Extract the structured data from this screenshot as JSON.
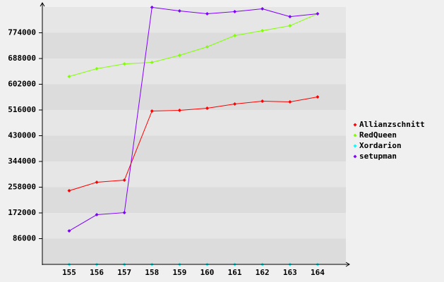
{
  "chart_data": {
    "type": "line",
    "categories": [
      "155",
      "156",
      "157",
      "158",
      "159",
      "160",
      "161",
      "162",
      "163",
      "164"
    ],
    "series": [
      {
        "name": "Allianzschnitt",
        "color": "#ff0000",
        "values": [
          246200,
          274500,
          281600,
          512500,
          514900,
          522000,
          536000,
          545500,
          543000,
          559600
        ]
      },
      {
        "name": "RedQueen",
        "color": "#80ff00",
        "values": [
          628000,
          654000,
          670000,
          675000,
          698600,
          726900,
          764600,
          781000,
          797500,
          837500
        ]
      },
      {
        "name": "Xordarion",
        "color": "#00ffff",
        "values": [
          0,
          0,
          0,
          0,
          0,
          0,
          0,
          0,
          0,
          0
        ]
      },
      {
        "name": "setupman",
        "color": "#8000ff",
        "values": [
          112000,
          166000,
          173000,
          859000,
          847000,
          837500,
          844700,
          854000,
          828000,
          837500
        ]
      }
    ],
    "ylim": [
      0,
      860000
    ],
    "yticks": [
      86000,
      172000,
      258000,
      344000,
      430000,
      516000,
      602000,
      688000,
      774000
    ],
    "grid": true,
    "legend": "right"
  }
}
